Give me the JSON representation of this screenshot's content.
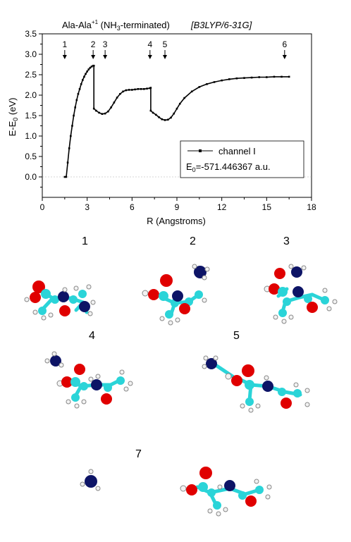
{
  "chart_data": {
    "type": "line",
    "title": {
      "prefix": "Ala-Ala",
      "charge": "+1",
      "suffix_pre": " (NH",
      "sub3": "3",
      "suffix_post": "-terminated)",
      "method": "[B3LYP/6-31G]"
    },
    "xlabel": "R (Angstroms)",
    "ylabel": {
      "main": "E-E",
      "sub": "0",
      "unit": " (eV)"
    },
    "xlim": [
      0,
      18
    ],
    "ylim": [
      -0.5,
      3.5
    ],
    "xticks": [
      "0",
      "3",
      "6",
      "9",
      "12",
      "15",
      "18"
    ],
    "yticks": [
      "0.0",
      "0.5",
      "1.0",
      "1.5",
      "2.0",
      "2.5",
      "3.0",
      "3.5"
    ],
    "legend": {
      "series_label": "channel I",
      "energy_prefix": "E",
      "energy_sub": "0",
      "energy_value": "=-571.446367 a.u.",
      "placement": "lower-right"
    },
    "series": [
      {
        "name": "channel I",
        "color": "#000000",
        "x": [
          1.5,
          1.6,
          1.7,
          1.8,
          1.9,
          2.0,
          2.1,
          2.2,
          2.3,
          2.4,
          2.5,
          2.6,
          2.7,
          2.8,
          2.9,
          3.0,
          3.1,
          3.2,
          3.3,
          3.4,
          3.45,
          3.45,
          3.6,
          3.8,
          4.0,
          4.2,
          4.4,
          4.6,
          4.8,
          5.0,
          5.2,
          5.4,
          5.6,
          5.8,
          6.0,
          6.2,
          6.4,
          6.6,
          6.8,
          7.0,
          7.2,
          7.25,
          7.25,
          7.4,
          7.6,
          7.8,
          8.0,
          8.2,
          8.4,
          8.6,
          8.8,
          9.0,
          9.2,
          9.5,
          10.0,
          10.5,
          11.0,
          11.5,
          12.0,
          12.5,
          13.0,
          13.5,
          14.0,
          14.5,
          15.0,
          15.5,
          16.0,
          16.5
        ],
        "y": [
          0.0,
          0.0,
          0.35,
          0.7,
          1.0,
          1.25,
          1.5,
          1.7,
          1.88,
          2.03,
          2.15,
          2.27,
          2.37,
          2.45,
          2.52,
          2.58,
          2.63,
          2.67,
          2.7,
          2.72,
          2.72,
          1.67,
          1.62,
          1.57,
          1.54,
          1.55,
          1.6,
          1.7,
          1.82,
          1.94,
          2.03,
          2.09,
          2.12,
          2.13,
          2.13,
          2.14,
          2.15,
          2.15,
          2.15,
          2.16,
          2.17,
          2.18,
          1.62,
          1.57,
          1.52,
          1.46,
          1.41,
          1.39,
          1.4,
          1.45,
          1.55,
          1.67,
          1.79,
          1.93,
          2.09,
          2.2,
          2.27,
          2.32,
          2.36,
          2.39,
          2.41,
          2.42,
          2.43,
          2.44,
          2.44,
          2.45,
          2.45,
          2.45
        ]
      }
    ],
    "annotations": [
      {
        "label": "1",
        "x": 1.5
      },
      {
        "label": "2",
        "x": 3.4
      },
      {
        "label": "3",
        "x": 4.2
      },
      {
        "label": "4",
        "x": 7.2
      },
      {
        "label": "5",
        "x": 8.2
      },
      {
        "label": "6",
        "x": 16.2
      }
    ],
    "zero_line": true
  },
  "structures": [
    {
      "label": "1"
    },
    {
      "label": "2"
    },
    {
      "label": "3"
    },
    {
      "label": "4"
    },
    {
      "label": "5"
    },
    {
      "label": "7"
    }
  ],
  "colors": {
    "oxygen": "#e00000",
    "nitrogen": "#0d1466",
    "carbon": "#2ad4d8",
    "hydrogen": "#f2f2f2"
  }
}
